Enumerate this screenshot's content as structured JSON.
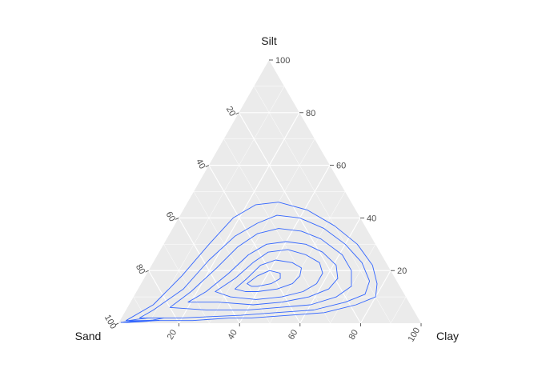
{
  "chart_data": {
    "type": "ternary-contour",
    "axes": {
      "top": "Silt",
      "left": "Sand",
      "right": "Clay"
    },
    "tick_values": [
      20,
      40,
      60,
      80,
      100
    ],
    "range": [
      0,
      100
    ],
    "grid": true,
    "panel_background": "#ebebeb",
    "grid_color": "#ffffff",
    "line_color": "#3366ff",
    "series_encoding": "each contour is a closed path given as [Sand, Silt, Clay] percentages",
    "contours": [
      {
        "level": 1,
        "points": [
          [
            62,
            2,
            36
          ],
          [
            55,
            2,
            43
          ],
          [
            42,
            3,
            55
          ],
          [
            30,
            4,
            66
          ],
          [
            18,
            7,
            75
          ],
          [
            10,
            10,
            80
          ],
          [
            7,
            15,
            78
          ],
          [
            5,
            22,
            73
          ],
          [
            6,
            30,
            64
          ],
          [
            10,
            37,
            53
          ],
          [
            16,
            43,
            41
          ],
          [
            24,
            46,
            30
          ],
          [
            32,
            45,
            23
          ],
          [
            42,
            40,
            18
          ],
          [
            55,
            30,
            15
          ],
          [
            70,
            18,
            12
          ],
          [
            85,
            7,
            8
          ],
          [
            97,
            1,
            2
          ],
          [
            90,
            1,
            9
          ],
          [
            75,
            1,
            24
          ]
        ]
      },
      {
        "level": 2,
        "points": [
          [
            58,
            3,
            39
          ],
          [
            46,
            4,
            50
          ],
          [
            33,
            5,
            62
          ],
          [
            21,
            8,
            71
          ],
          [
            13,
            11,
            76
          ],
          [
            9,
            16,
            75
          ],
          [
            8,
            23,
            69
          ],
          [
            10,
            30,
            60
          ],
          [
            14,
            36,
            50
          ],
          [
            20,
            40,
            40
          ],
          [
            27,
            41,
            32
          ],
          [
            35,
            38,
            27
          ],
          [
            45,
            33,
            22
          ],
          [
            58,
            24,
            18
          ],
          [
            72,
            13,
            15
          ],
          [
            86,
            5,
            9
          ],
          [
            92,
            2,
            6
          ],
          [
            78,
            2,
            20
          ]
        ]
      },
      {
        "level": 3,
        "points": [
          [
            55,
            5,
            40
          ],
          [
            44,
            6,
            50
          ],
          [
            33,
            7,
            60
          ],
          [
            23,
            10,
            67
          ],
          [
            16,
            14,
            70
          ],
          [
            13,
            20,
            67
          ],
          [
            13,
            26,
            61
          ],
          [
            17,
            32,
            51
          ],
          [
            22,
            35,
            43
          ],
          [
            29,
            36,
            35
          ],
          [
            37,
            34,
            29
          ],
          [
            46,
            29,
            25
          ],
          [
            57,
            21,
            22
          ],
          [
            70,
            12,
            18
          ],
          [
            80,
            6,
            14
          ],
          [
            68,
            5,
            27
          ]
        ]
      },
      {
        "level": 4,
        "points": [
          [
            52,
            7,
            41
          ],
          [
            42,
            8,
            50
          ],
          [
            32,
            10,
            58
          ],
          [
            24,
            13,
            63
          ],
          [
            19,
            17,
            64
          ],
          [
            17,
            22,
            61
          ],
          [
            19,
            27,
            54
          ],
          [
            23,
            30,
            47
          ],
          [
            29,
            31,
            40
          ],
          [
            36,
            30,
            34
          ],
          [
            44,
            26,
            30
          ],
          [
            54,
            19,
            27
          ],
          [
            65,
            12,
            23
          ],
          [
            73,
            8,
            19
          ],
          [
            63,
            8,
            29
          ]
        ]
      },
      {
        "level": 5,
        "points": [
          [
            50,
            9,
            41
          ],
          [
            41,
            10,
            49
          ],
          [
            33,
            12,
            55
          ],
          [
            27,
            15,
            58
          ],
          [
            23,
            19,
            58
          ],
          [
            22,
            23,
            55
          ],
          [
            25,
            26,
            49
          ],
          [
            30,
            28,
            42
          ],
          [
            37,
            27,
            36
          ],
          [
            44,
            23,
            33
          ],
          [
            53,
            17,
            30
          ],
          [
            62,
            12,
            26
          ],
          [
            58,
            10,
            32
          ]
        ]
      },
      {
        "level": 6,
        "points": [
          [
            48,
            12,
            40
          ],
          [
            41,
            13,
            46
          ],
          [
            35,
            15,
            50
          ],
          [
            31,
            18,
            51
          ],
          [
            29,
            21,
            50
          ],
          [
            31,
            23,
            46
          ],
          [
            36,
            24,
            40
          ],
          [
            42,
            22,
            36
          ],
          [
            49,
            17,
            34
          ],
          [
            55,
            13,
            32
          ],
          [
            52,
            12,
            36
          ]
        ]
      },
      {
        "level": 7,
        "points": [
          [
            47,
            14,
            39
          ],
          [
            42,
            15,
            43
          ],
          [
            38,
            17,
            45
          ],
          [
            37,
            19,
            44
          ],
          [
            40,
            20,
            40
          ],
          [
            45,
            18,
            37
          ],
          [
            50,
            15,
            35
          ],
          [
            49,
            14,
            37
          ]
        ]
      },
      {
        "level": 8,
        "points": [
          [
            96,
            1,
            3
          ],
          [
            93,
            1.5,
            5.5
          ],
          [
            89,
            2,
            9
          ],
          [
            84,
            2,
            14
          ],
          [
            88,
            1.2,
            10.8
          ],
          [
            94,
            0.6,
            5.4
          ]
        ]
      },
      {
        "level": 9,
        "points": [
          [
            98,
            0.5,
            1.5
          ],
          [
            95,
            0.8,
            4.2
          ],
          [
            91,
            1,
            8
          ],
          [
            86,
            1.1,
            12.9
          ],
          [
            92,
            0.6,
            7.4
          ],
          [
            97,
            0.3,
            2.7
          ]
        ]
      },
      {
        "level": 10,
        "points": [
          [
            99,
            0.3,
            0.7
          ],
          [
            97,
            0.5,
            2.5
          ],
          [
            94,
            0.7,
            5.3
          ],
          [
            96,
            0.4,
            3.6
          ]
        ]
      }
    ]
  }
}
